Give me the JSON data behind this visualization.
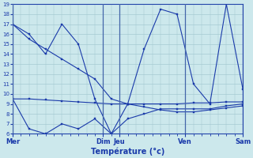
{
  "title": "Température (°c)",
  "bg_color": "#cce8ec",
  "grid_color": "#9dc4cc",
  "line_color": "#1a3aaa",
  "ylim": [
    6,
    19
  ],
  "yticks": [
    6,
    7,
    8,
    9,
    10,
    11,
    12,
    13,
    14,
    15,
    16,
    17,
    18,
    19
  ],
  "xlim": [
    0,
    28
  ],
  "day_positions": [
    0,
    11,
    13,
    21,
    28
  ],
  "day_labels": [
    "Mer",
    "Dim",
    "Jeu",
    "Ven",
    "Sam"
  ],
  "series": [
    {
      "x": [
        0,
        2,
        4,
        6,
        8,
        10,
        12,
        14,
        16,
        18,
        20,
        22,
        24,
        26,
        28
      ],
      "y": [
        17,
        15.5,
        14.5,
        13.5,
        12.5,
        11.5,
        9.5,
        9.0,
        8.7,
        8.4,
        8.2,
        8.2,
        8.4,
        8.6,
        8.8
      ]
    },
    {
      "x": [
        0,
        2,
        4,
        6,
        8,
        10,
        12,
        14,
        16,
        18,
        20,
        22,
        24,
        26,
        28
      ],
      "y": [
        9.5,
        9.5,
        9.4,
        9.3,
        9.2,
        9.1,
        9.0,
        9.0,
        9.0,
        9.0,
        9.0,
        9.1,
        9.1,
        9.2,
        9.2
      ]
    },
    {
      "x": [
        0,
        2,
        4,
        6,
        8,
        10,
        12,
        14,
        16,
        18,
        20,
        22,
        24,
        26,
        28
      ],
      "y": [
        17,
        16,
        14,
        17,
        15,
        9.5,
        6,
        9,
        14.5,
        18.5,
        18,
        11,
        9,
        19,
        10.5
      ]
    },
    {
      "x": [
        0,
        2,
        4,
        6,
        8,
        10,
        12,
        14,
        16,
        18,
        20,
        22,
        24,
        26,
        28
      ],
      "y": [
        9.5,
        6.5,
        6.0,
        7.0,
        6.5,
        7.5,
        6.0,
        7.5,
        8.0,
        8.5,
        8.5,
        8.5,
        8.5,
        8.8,
        9.0
      ]
    }
  ]
}
